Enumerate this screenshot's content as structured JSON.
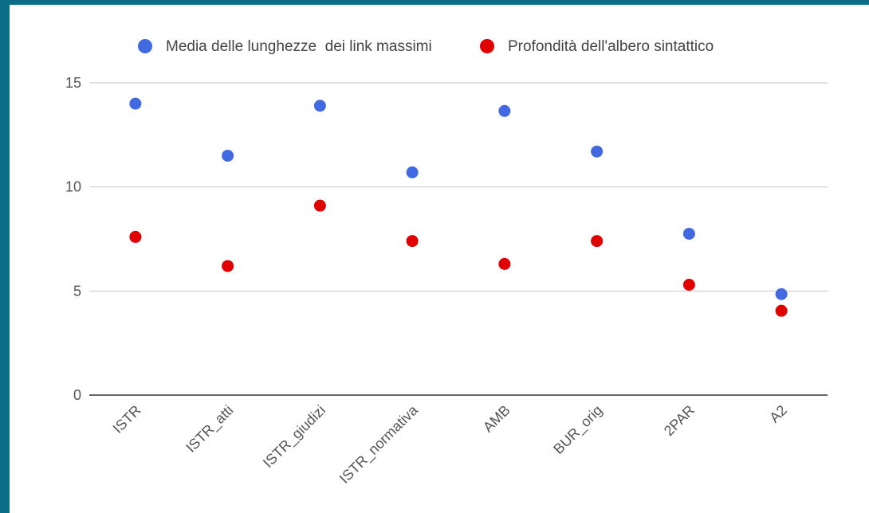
{
  "colors": {
    "frame_border": "#0b6e86",
    "background": "#ffffff",
    "gridline": "#d9d9d9",
    "axis": "#333333"
  },
  "chart_data": {
    "type": "scatter",
    "title": "",
    "xlabel": "",
    "ylabel": "",
    "ylim": [
      0,
      15
    ],
    "yticks": [
      0,
      5,
      10,
      15
    ],
    "grid": true,
    "legend_position": "top",
    "categories": [
      "ISTR",
      "ISTR_atti",
      "ISTR_giudizi",
      "ISTR_normativa",
      "AMB",
      "BUR_orig",
      "2PAR",
      "A2"
    ],
    "series": [
      {
        "name": "Media delle lunghezze  dei link massimi",
        "color": "#4169e1",
        "values": [
          14.0,
          11.5,
          13.9,
          10.7,
          13.65,
          11.7,
          7.75,
          4.85
        ]
      },
      {
        "name": "Profondità dell'albero sintattico",
        "color": "#e00000",
        "values": [
          7.6,
          6.2,
          9.1,
          7.4,
          6.3,
          7.4,
          5.3,
          4.05
        ]
      }
    ]
  }
}
